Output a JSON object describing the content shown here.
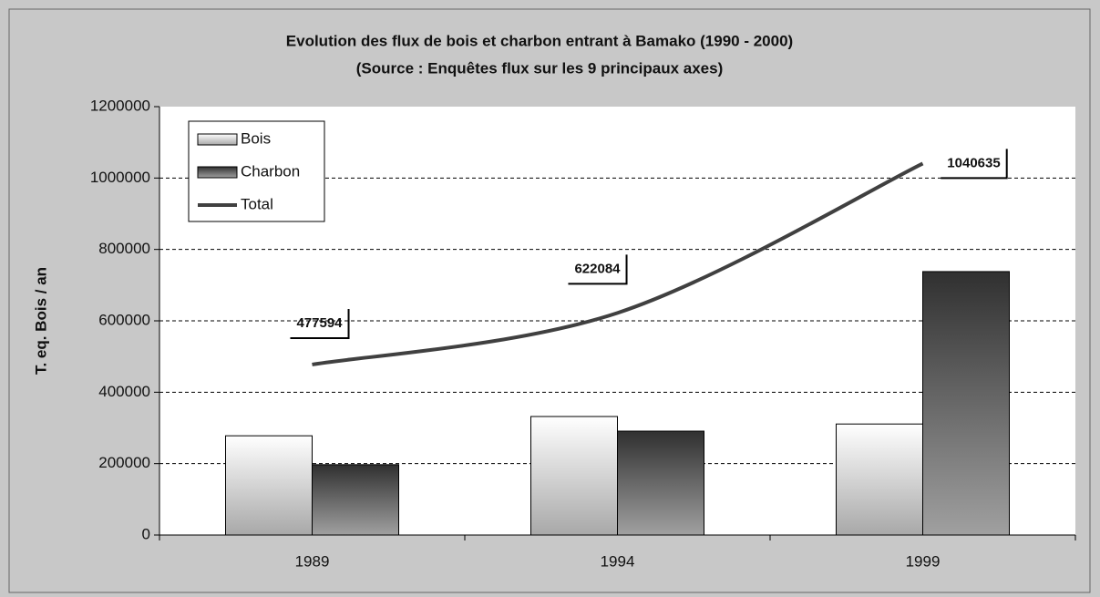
{
  "chart_data": {
    "type": "bar",
    "title": "Evolution des flux de bois et charbon entrant à  Bamako (1990 - 2000)",
    "subtitle": "(Source : Enquêtes flux sur les 9 principaux axes)",
    "y_label": "T. eq. Bois / an",
    "categories": [
      "1989",
      "1994",
      "1999"
    ],
    "series": [
      {
        "name": "Bois",
        "type": "bar",
        "color": "#d8d8d8",
        "values": [
          278000,
          332000,
          311000
        ]
      },
      {
        "name": "Charbon",
        "type": "bar",
        "color": "#404040",
        "values": [
          197000,
          291000,
          738000
        ]
      },
      {
        "name": "Total",
        "type": "line",
        "color": "#404040",
        "values": [
          477594,
          622084,
          1040635
        ]
      }
    ],
    "ylim": [
      0,
      1200000
    ],
    "yticks": [
      0,
      200000,
      400000,
      600000,
      800000,
      1000000,
      1200000
    ],
    "grid": true,
    "legend": "top-left"
  }
}
